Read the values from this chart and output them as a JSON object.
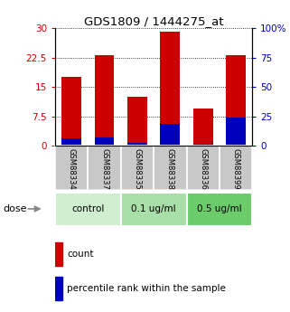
{
  "title": "GDS1809 / 1444275_at",
  "categories": [
    "GSM88334",
    "GSM88337",
    "GSM88335",
    "GSM88338",
    "GSM88336",
    "GSM88399"
  ],
  "red_values": [
    17.5,
    23.0,
    12.5,
    29.0,
    9.5,
    23.0
  ],
  "blue_values": [
    1.8,
    2.2,
    0.7,
    5.5,
    0.5,
    7.2
  ],
  "left_ylim": [
    0,
    30
  ],
  "right_ylim": [
    0,
    100
  ],
  "left_yticks": [
    0,
    7.5,
    15,
    22.5,
    30
  ],
  "right_yticks": [
    0,
    25,
    50,
    75,
    100
  ],
  "right_yticklabels": [
    "0",
    "25",
    "50",
    "75",
    "100%"
  ],
  "bar_width": 0.6,
  "groups": [
    {
      "label": "control",
      "indices": [
        0,
        1
      ],
      "color": "#d0eed0"
    },
    {
      "label": "0.1 ug/ml",
      "indices": [
        2,
        3
      ],
      "color": "#a8dfa8"
    },
    {
      "label": "0.5 ug/ml",
      "indices": [
        4,
        5
      ],
      "color": "#6ccc6c"
    }
  ],
  "dose_label": "dose",
  "legend_red": "count",
  "legend_blue": "percentile rank within the sample",
  "bg_color": "#ffffff",
  "plot_bg": "#ffffff",
  "tick_color_left": "#cc0000",
  "tick_color_right": "#0000bb",
  "sample_bg_color": "#c8c8c8",
  "red_color": "#cc0000",
  "blue_color": "#0000bb"
}
